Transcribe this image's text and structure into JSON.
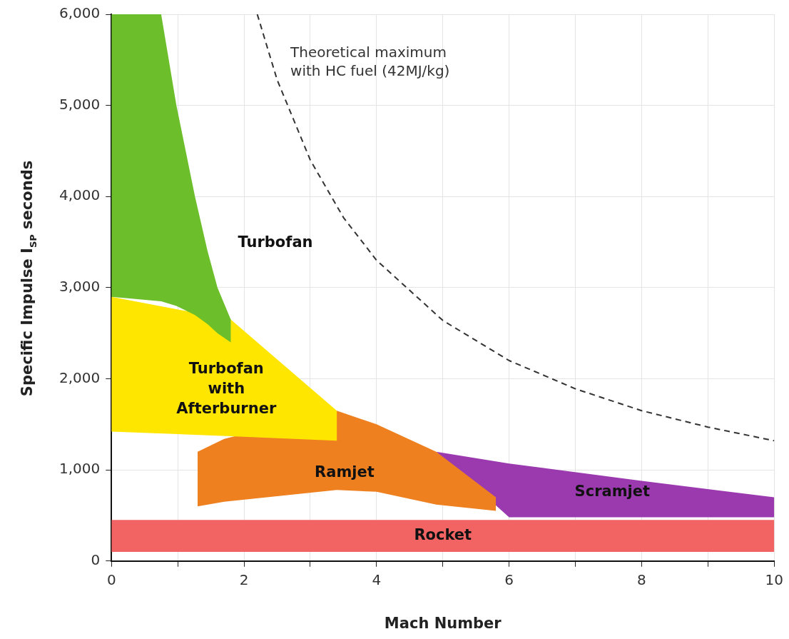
{
  "chart_data": {
    "type": "area",
    "xlabel": "Mach Number",
    "ylabel": "Specific Impulse I$_{SP}$ seconds",
    "xlim": [
      0,
      10
    ],
    "xticks": [
      0,
      {
        "value": 1,
        "label": null
      },
      2,
      {
        "value": 3,
        "label": null
      },
      4,
      {
        "value": 5,
        "label": null
      },
      6,
      {
        "value": 7,
        "label": null
      },
      8,
      {
        "value": 9,
        "label": null
      },
      10
    ],
    "ylim": [
      0,
      6000
    ],
    "yticks": [
      0,
      {
        "value": 1000,
        "label": "1,000"
      },
      {
        "value": 2000,
        "label": "2,000"
      },
      {
        "value": 3000,
        "label": "3,000"
      },
      {
        "value": 4000,
        "label": "4,000"
      },
      {
        "value": 5000,
        "label": "5,000"
      },
      {
        "value": 6000,
        "label": "6,000"
      }
    ],
    "grid": true,
    "legend": false,
    "marker": "none",
    "series": [
      {
        "name": "Turbofan",
        "color": "#6cbf2a",
        "x": [
          0,
          0.75,
          0.98,
          1.26,
          1.45,
          1.6,
          1.8,
          1.8,
          1.6,
          1.45,
          1.26,
          0.98,
          0.75,
          0
        ],
        "values": [
          6000,
          6000,
          5000,
          4000,
          3400,
          3000,
          2650,
          2400,
          2500,
          2600,
          2700,
          2800,
          2850,
          2900
        ]
      },
      {
        "name": "Turbofan with Afterburner",
        "color": "#ffe600",
        "x": [
          0,
          1.8,
          3.4,
          3.4,
          1.8,
          0
        ],
        "values": [
          2900,
          2650,
          1650,
          1320,
          1370,
          1420
        ]
      },
      {
        "name": "Ramjet",
        "color": "#ee8020",
        "x": [
          1.3,
          1.7,
          3.4,
          4.0,
          4.9,
          5.8,
          5.8,
          4.9,
          4.0,
          3.4,
          1.7,
          1.3
        ],
        "values": [
          1200,
          1340,
          1650,
          1500,
          1200,
          700,
          550,
          620,
          760,
          780,
          650,
          600
        ]
      },
      {
        "name": "Scramjet",
        "color": "#9b3aae",
        "x": [
          4.9,
          6,
          8,
          10,
          10,
          8,
          6
        ],
        "values": [
          1200,
          1070,
          880,
          700,
          480,
          480,
          480
        ]
      },
      {
        "name": "Rocket",
        "color": "#f26464",
        "x": [
          0,
          10,
          10,
          0
        ],
        "values": [
          450,
          450,
          100,
          100
        ]
      },
      {
        "type": "line",
        "color": "#333333",
        "line_style": "dashed",
        "x": [
          2.2,
          2.5,
          3,
          3.5,
          4,
          5,
          6,
          7,
          8,
          9,
          10
        ],
        "values": [
          6000,
          5280,
          4400,
          3770,
          3300,
          2640,
          2200,
          1890,
          1650,
          1470,
          1320
        ]
      }
    ],
    "annotations": [
      "Theoretical maximum with HC fuel (42MJ/kg)"
    ]
  }
}
